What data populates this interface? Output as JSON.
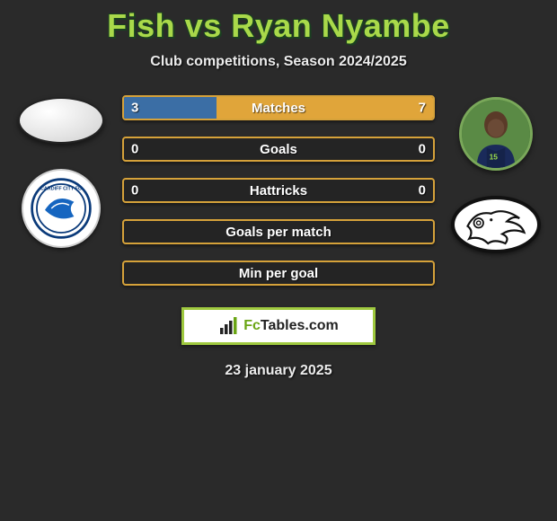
{
  "title": "Fish vs Ryan Nyambe",
  "subtitle": "Club competitions, Season 2024/2025",
  "date": "23 january 2025",
  "brand": {
    "prefix": "Fc",
    "suffix": "Tables.com"
  },
  "colors": {
    "accent_green": "#a9d94a",
    "bar_border": "#d6a23a",
    "bar_fill_blue": "#3b6ea5",
    "bar_fill_orange": "#e0a53a",
    "background": "#2a2a2a"
  },
  "stats": [
    {
      "label": "Matches",
      "left_val": "3",
      "right_val": "7",
      "left_pct": 30,
      "right_pct": 70,
      "left_color": "#3b6ea5",
      "right_color": "#e0a53a"
    },
    {
      "label": "Goals",
      "left_val": "0",
      "right_val": "0",
      "left_pct": 0,
      "right_pct": 0,
      "left_color": "#3b6ea5",
      "right_color": "#e0a53a"
    },
    {
      "label": "Hattricks",
      "left_val": "0",
      "right_val": "0",
      "left_pct": 0,
      "right_pct": 0,
      "left_color": "#3b6ea5",
      "right_color": "#e0a53a"
    },
    {
      "label": "Goals per match",
      "left_val": "",
      "right_val": "",
      "left_pct": 0,
      "right_pct": 0,
      "left_color": "#3b6ea5",
      "right_color": "#e0a53a"
    },
    {
      "label": "Min per goal",
      "left_val": "",
      "right_val": "",
      "left_pct": 0,
      "right_pct": 0,
      "left_color": "#3b6ea5",
      "right_color": "#e0a53a"
    }
  ],
  "left_player": {
    "name": "Fish",
    "club": "Cardiff City FC"
  },
  "right_player": {
    "name": "Ryan Nyambe",
    "club": "Derby County"
  }
}
